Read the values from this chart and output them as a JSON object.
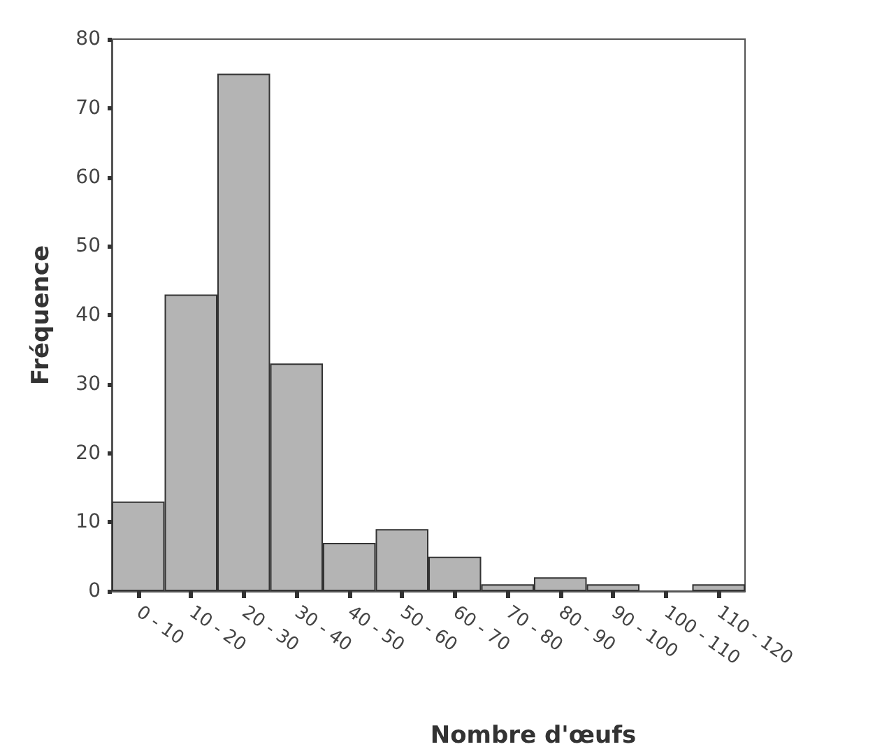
{
  "chart_data": {
    "type": "bar",
    "xlabel": "Nombre d'œufs",
    "ylabel": "Fréquence",
    "categories": [
      "0 - 10",
      "10 - 20",
      "20 - 30",
      "30 - 40",
      "40 - 50",
      "50 - 60",
      "60 - 70",
      "70 - 80",
      "80 - 90",
      "90 - 100",
      "100 - 110",
      "110 - 120"
    ],
    "values": [
      13,
      43,
      75,
      33,
      7,
      9,
      5,
      1,
      2,
      1,
      0,
      1
    ],
    "color": "#b4b4b4",
    "ylim": [
      0,
      80
    ],
    "yticks": [
      0,
      10,
      20,
      30,
      40,
      50,
      60,
      70,
      80
    ],
    "grid": false
  }
}
